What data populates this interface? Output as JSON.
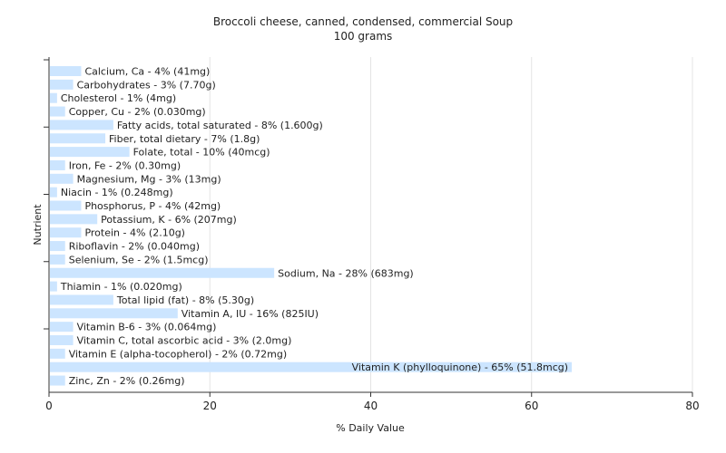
{
  "chart_data": {
    "type": "bar",
    "orientation": "horizontal",
    "title": "Broccoli cheese, canned, condensed, commercial Soup",
    "subtitle": "100 grams",
    "xlabel": "% Daily Value",
    "ylabel": "Nutrient",
    "xlim": [
      0,
      80
    ],
    "xticks": [
      "0",
      "20",
      "40",
      "60",
      "80"
    ],
    "grid": true,
    "bar_color": "#cce5ff",
    "categories": [
      "Calcium, Ca",
      "Carbohydrates",
      "Cholesterol",
      "Copper, Cu",
      "Fatty acids, total saturated",
      "Fiber, total dietary",
      "Folate, total",
      "Iron, Fe",
      "Magnesium, Mg",
      "Niacin",
      "Phosphorus, P",
      "Potassium, K",
      "Protein",
      "Riboflavin",
      "Selenium, Se",
      "Sodium, Na",
      "Thiamin",
      "Total lipid (fat)",
      "Vitamin A, IU",
      "Vitamin B-6",
      "Vitamin C, total ascorbic acid",
      "Vitamin E (alpha-tocopherol)",
      "Vitamin K (phylloquinone)",
      "Zinc, Zn"
    ],
    "values": [
      4,
      3,
      1,
      2,
      8,
      7,
      10,
      2,
      3,
      1,
      4,
      6,
      4,
      2,
      2,
      28,
      1,
      8,
      16,
      3,
      3,
      2,
      65,
      2
    ],
    "labels": [
      "Calcium, Ca - 4% (41mg)",
      "Carbohydrates - 3% (7.70g)",
      "Cholesterol - 1% (4mg)",
      "Copper, Cu - 2% (0.030mg)",
      "Fatty acids, total saturated - 8% (1.600g)",
      "Fiber, total dietary - 7% (1.8g)",
      "Folate, total - 10% (40mcg)",
      "Iron, Fe - 2% (0.30mg)",
      "Magnesium, Mg - 3% (13mg)",
      "Niacin - 1% (0.248mg)",
      "Phosphorus, P - 4% (42mg)",
      "Potassium, K - 6% (207mg)",
      "Protein - 4% (2.10g)",
      "Riboflavin - 2% (0.040mg)",
      "Selenium, Se - 2% (1.5mcg)",
      "Sodium, Na - 28% (683mg)",
      "Thiamin - 1% (0.020mg)",
      "Total lipid (fat) - 8% (5.30g)",
      "Vitamin A, IU - 16% (825IU)",
      "Vitamin B-6 - 3% (0.064mg)",
      "Vitamin C, total ascorbic acid - 3% (2.0mg)",
      "Vitamin E (alpha-tocopherol) - 2% (0.72mg)",
      "Vitamin K (phylloquinone) - 65% (51.8mcg)",
      "Zinc, Zn - 2% (0.26mg)"
    ]
  }
}
